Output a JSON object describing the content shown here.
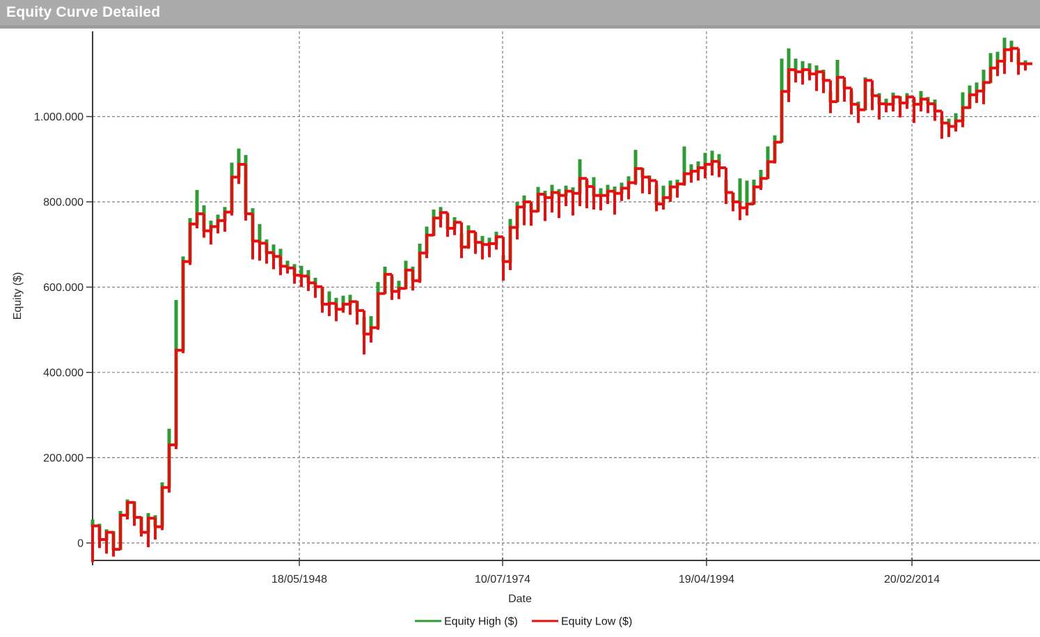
{
  "title_bar": {
    "title": "Equity Curve Detailed"
  },
  "colors": {
    "titlebar_bg": "#ababab",
    "titlebar_edge": "#9c9c9c",
    "title_text": "#ffffff",
    "plot_bg": "#ffffff",
    "grid": "#7e7e7e",
    "axis": "#3a3a3a",
    "tick_text": "#2b2b2b",
    "equity_high": "#2f9b35",
    "equity_low": "#e60e0e"
  },
  "chart_data": {
    "type": "line",
    "subtype": "step-high-low",
    "title": "Equity Curve Detailed",
    "xlabel": "Date",
    "ylabel": "Equity ($)",
    "grid": true,
    "legend_position": "bottom-center",
    "ylim": [
      -41000,
      1200000
    ],
    "y_ticks": {
      "values": [
        0,
        200000,
        400000,
        600000,
        800000,
        1000000
      ],
      "labels": [
        "0",
        "200.000",
        "400.000",
        "600.000",
        "800.000",
        "1.000.000"
      ]
    },
    "x_ticks": {
      "labels": [
        "18/05/1948",
        "10/07/1974",
        "19/04/1994",
        "20/02/2014"
      ],
      "fractions": [
        0.22,
        0.4363,
        0.6533,
        0.8719
      ]
    },
    "series": [
      {
        "name": "Equity High ($)",
        "color": "#2f9b35",
        "role": "high"
      },
      {
        "name": "Equity Low ($)",
        "color": "#e60e0e",
        "role": "low"
      }
    ],
    "periods_format": "[step_level_usd, high_usd, low_usd] per time step, left to right",
    "periods": [
      [
        40000,
        55000,
        -45000
      ],
      [
        8000,
        45000,
        -12000
      ],
      [
        25000,
        32000,
        -25000
      ],
      [
        -15000,
        28000,
        -32000
      ],
      [
        65000,
        75000,
        -5000
      ],
      [
        95000,
        102000,
        55000
      ],
      [
        60000,
        98000,
        40000
      ],
      [
        25000,
        62000,
        15000
      ],
      [
        58000,
        70000,
        -10000
      ],
      [
        38000,
        65000,
        8000
      ],
      [
        130000,
        142000,
        30000
      ],
      [
        230000,
        268000,
        118000
      ],
      [
        452000,
        570000,
        220000
      ],
      [
        660000,
        672000,
        445000
      ],
      [
        748000,
        762000,
        652000
      ],
      [
        772000,
        828000,
        738000
      ],
      [
        732000,
        792000,
        716000
      ],
      [
        742000,
        756000,
        700000
      ],
      [
        756000,
        770000,
        726000
      ],
      [
        776000,
        788000,
        730000
      ],
      [
        858000,
        892000,
        768000
      ],
      [
        888000,
        925000,
        842000
      ],
      [
        772000,
        910000,
        756000
      ],
      [
        708000,
        785000,
        665000
      ],
      [
        703000,
        748000,
        662000
      ],
      [
        681000,
        712000,
        655000
      ],
      [
        672000,
        700000,
        642000
      ],
      [
        649000,
        690000,
        628000
      ],
      [
        645000,
        662000,
        632000
      ],
      [
        628000,
        654000,
        608000
      ],
      [
        626000,
        650000,
        600000
      ],
      [
        610000,
        640000,
        591000
      ],
      [
        601000,
        622000,
        575000
      ],
      [
        560000,
        600000,
        540000
      ],
      [
        562000,
        590000,
        532000
      ],
      [
        548000,
        575000,
        520000
      ],
      [
        560000,
        580000,
        540000
      ],
      [
        566000,
        582000,
        535000
      ],
      [
        545000,
        568000,
        512000
      ],
      [
        490000,
        530000,
        442000
      ],
      [
        505000,
        532000,
        470000
      ],
      [
        585000,
        612000,
        500000
      ],
      [
        630000,
        648000,
        590000
      ],
      [
        590000,
        625000,
        570000
      ],
      [
        597000,
        615000,
        572000
      ],
      [
        640000,
        662000,
        595000
      ],
      [
        615000,
        648000,
        592000
      ],
      [
        680000,
        702000,
        610000
      ],
      [
        722000,
        742000,
        668000
      ],
      [
        762000,
        782000,
        720000
      ],
      [
        775000,
        788000,
        740000
      ],
      [
        738000,
        772000,
        718000
      ],
      [
        752000,
        764000,
        722000
      ],
      [
        694000,
        726000,
        668000
      ],
      [
        730000,
        745000,
        690000
      ],
      [
        705000,
        728000,
        678000
      ],
      [
        700000,
        720000,
        665000
      ],
      [
        702000,
        716000,
        670000
      ],
      [
        718000,
        730000,
        688000
      ],
      [
        660000,
        675000,
        615000
      ],
      [
        740000,
        760000,
        640000
      ],
      [
        788000,
        800000,
        712000
      ],
      [
        800000,
        815000,
        745000
      ],
      [
        778000,
        795000,
        744000
      ],
      [
        818000,
        835000,
        776000
      ],
      [
        810000,
        826000,
        755000
      ],
      [
        822000,
        840000,
        775000
      ],
      [
        815000,
        830000,
        762000
      ],
      [
        825000,
        838000,
        790000
      ],
      [
        820000,
        834000,
        768000
      ],
      [
        855000,
        900000,
        790000
      ],
      [
        836000,
        850000,
        785000
      ],
      [
        815000,
        858000,
        782000
      ],
      [
        815000,
        832000,
        780000
      ],
      [
        825000,
        840000,
        795000
      ],
      [
        820000,
        836000,
        770000
      ],
      [
        832000,
        845000,
        802000
      ],
      [
        845000,
        860000,
        806000
      ],
      [
        878000,
        922000,
        840000
      ],
      [
        858000,
        880000,
        820000
      ],
      [
        850000,
        862000,
        818000
      ],
      [
        795000,
        840000,
        778000
      ],
      [
        810000,
        838000,
        782000
      ],
      [
        835000,
        850000,
        800000
      ],
      [
        842000,
        852000,
        810000
      ],
      [
        866000,
        930000,
        838000
      ],
      [
        872000,
        888000,
        845000
      ],
      [
        880000,
        895000,
        850000
      ],
      [
        888000,
        915000,
        855000
      ],
      [
        895000,
        920000,
        862000
      ],
      [
        880000,
        912000,
        858000
      ],
      [
        822000,
        852000,
        795000
      ],
      [
        800000,
        822000,
        778000
      ],
      [
        786000,
        855000,
        757000
      ],
      [
        795000,
        850000,
        768000
      ],
      [
        835000,
        852000,
        810000
      ],
      [
        855000,
        875000,
        828000
      ],
      [
        894000,
        930000,
        855000
      ],
      [
        940000,
        956000,
        890000
      ],
      [
        1059000,
        1136000,
        1012000
      ],
      [
        1110000,
        1160000,
        1034000
      ],
      [
        1105000,
        1136000,
        1080000
      ],
      [
        1110000,
        1130000,
        1075000
      ],
      [
        1100000,
        1125000,
        1085000
      ],
      [
        1105000,
        1120000,
        1060000
      ],
      [
        1085000,
        1110000,
        1055000
      ],
      [
        1035000,
        1060000,
        1008000
      ],
      [
        1092000,
        1133000,
        1058000
      ],
      [
        1067000,
        1085000,
        1035000
      ],
      [
        1029000,
        1060000,
        1005000
      ],
      [
        1016000,
        1035000,
        985000
      ],
      [
        1085000,
        1092000,
        1040000
      ],
      [
        1049000,
        1066000,
        1015000
      ],
      [
        1030000,
        1055000,
        993000
      ],
      [
        1029000,
        1042000,
        1010000
      ],
      [
        1046000,
        1056000,
        1012000
      ],
      [
        1032000,
        1048000,
        998000
      ],
      [
        1046000,
        1055000,
        1018000
      ],
      [
        1029000,
        1042000,
        985000
      ],
      [
        1041000,
        1060000,
        1012000
      ],
      [
        1030000,
        1046000,
        1008000
      ],
      [
        1013000,
        1040000,
        990000
      ],
      [
        985000,
        1002000,
        948000
      ],
      [
        977000,
        995000,
        952000
      ],
      [
        990000,
        1008000,
        965000
      ],
      [
        1021000,
        1057000,
        975000
      ],
      [
        1051000,
        1073000,
        1018000
      ],
      [
        1060000,
        1080000,
        1032000
      ],
      [
        1080000,
        1110000,
        1029000
      ],
      [
        1114000,
        1149000,
        1085000
      ],
      [
        1130000,
        1152000,
        1095000
      ],
      [
        1157000,
        1185000,
        1100000
      ],
      [
        1160000,
        1178000,
        1128000
      ],
      [
        1124000,
        1150000,
        1098000
      ],
      [
        1124000,
        1132000,
        1108000
      ]
    ]
  }
}
